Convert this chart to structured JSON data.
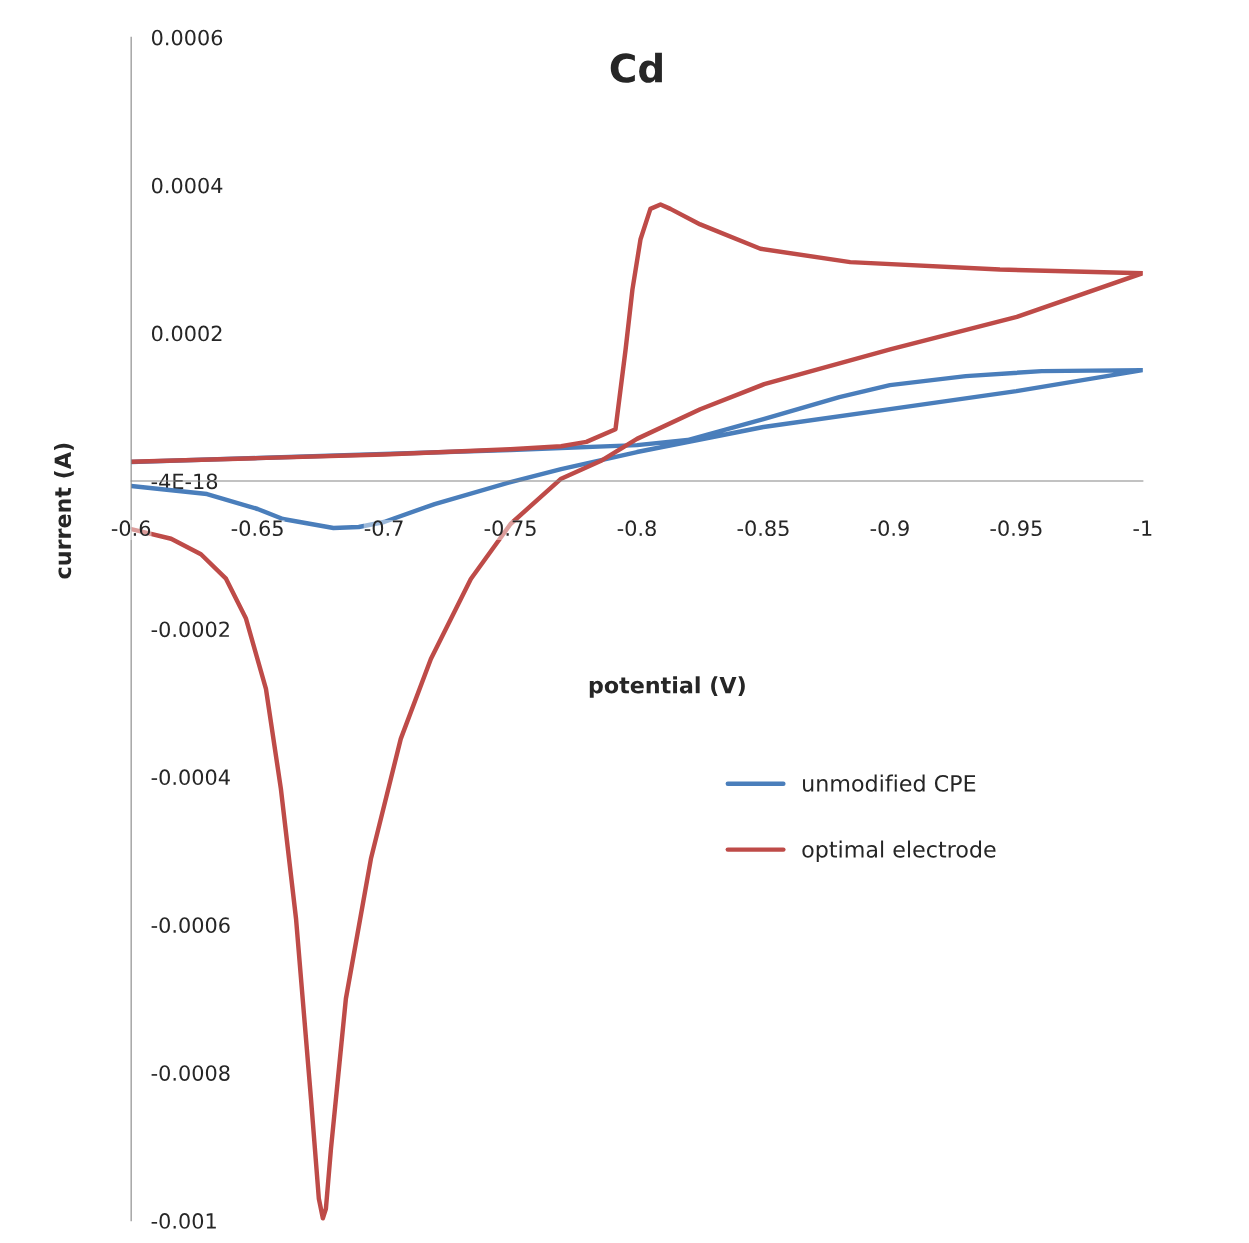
{
  "chart_data": {
    "type": "line",
    "title": "Cd",
    "xlabel": "potential (V)",
    "ylabel": "current (A)",
    "xlim": [
      -0.6,
      -1.0
    ],
    "xticks": [
      -0.6,
      -0.65,
      -0.7,
      -0.75,
      -0.8,
      -0.85,
      -0.9,
      -0.95,
      -1
    ],
    "ylim": [
      -0.001,
      0.0006
    ],
    "yticks": [
      -0.001,
      -0.0008,
      -0.0006,
      -0.0004,
      -0.0002,
      {
        "value": 0,
        "label": "-4E-18"
      },
      0.0002,
      0.0004,
      0.0006
    ],
    "grid": false,
    "legend": "right",
    "marker": "none",
    "line_style": "solid",
    "series": [
      {
        "name": "unmodified CPE",
        "color": "#4a7ebb",
        "x": [
          -0.6,
          -0.65,
          -0.7,
          -0.75,
          -0.8,
          -0.82,
          -0.85,
          -0.88,
          -0.9,
          -0.93,
          -0.96,
          -1.0,
          -0.95,
          -0.9,
          -0.85,
          -0.8,
          -0.77,
          -0.75,
          -0.72,
          -0.7,
          -0.69,
          -0.68,
          -0.66,
          -0.65,
          -0.63,
          -0.6
        ],
        "values": [
          2.57e-05,
          3.11e-05,
          3.65e-05,
          4.19e-05,
          4.86e-05,
          5.54e-05,
          8.38e-05,
          0.0001135,
          0.0001297,
          0.0001419,
          0.0001486,
          0.00015,
          0.0001216,
          9.73e-05,
          7.3e-05,
          3.92e-05,
          1.62e-05,
          -1.4e-06,
          -3.11e-05,
          -5.54e-05,
          -6.22e-05,
          -6.35e-05,
          -5.14e-05,
          -3.78e-05,
          -1.76e-05,
          -6.8e-06
        ]
      },
      {
        "name": "optimal electrode",
        "color": "#be4b48",
        "x": [
          -0.6,
          -0.65,
          -0.7,
          -0.75,
          -0.77,
          -0.78,
          -0.7915,
          -0.7955,
          -0.7982,
          -0.8014,
          -0.8053,
          -0.8093,
          -0.8132,
          -0.825,
          -0.8488,
          -0.8843,
          -0.9435,
          -1.0,
          -0.9502,
          -0.9001,
          -0.8503,
          -0.825,
          -0.8,
          -0.7856,
          -0.7698,
          -0.75,
          -0.7343,
          -0.7185,
          -0.7066,
          -0.6948,
          -0.6849,
          -0.679,
          -0.677,
          -0.6758,
          -0.6742,
          -0.6711,
          -0.6652,
          -0.6592,
          -0.6533,
          -0.6454,
          -0.6375,
          -0.6276,
          -0.6158,
          -0.6
        ],
        "values": [
          2.6e-05,
          3.1e-05,
          3.6e-05,
          4.3e-05,
          4.7e-05,
          5.3e-05,
          7e-05,
          0.000178,
          0.000259,
          0.000327,
          0.000368,
          0.000374,
          0.000368,
          0.000347,
          0.000314,
          0.000296,
          0.000286,
          0.000281,
          0.000222,
          0.000178,
          0.000131,
          9.7e-05,
          5.7e-05,
          2.7e-05,
          2.7e-06,
          -5.81e-05,
          -0.0001324,
          -0.0002405,
          -0.0003486,
          -0.0005108,
          -0.0007,
          -0.000903,
          -0.000984,
          -0.000997,
          -0.00097,
          -0.000835,
          -0.000592,
          -0.000416,
          -0.000281,
          -0.000186,
          -0.000132,
          -9.9e-05,
          -7.8e-05,
          -6.5e-05
        ]
      }
    ]
  }
}
